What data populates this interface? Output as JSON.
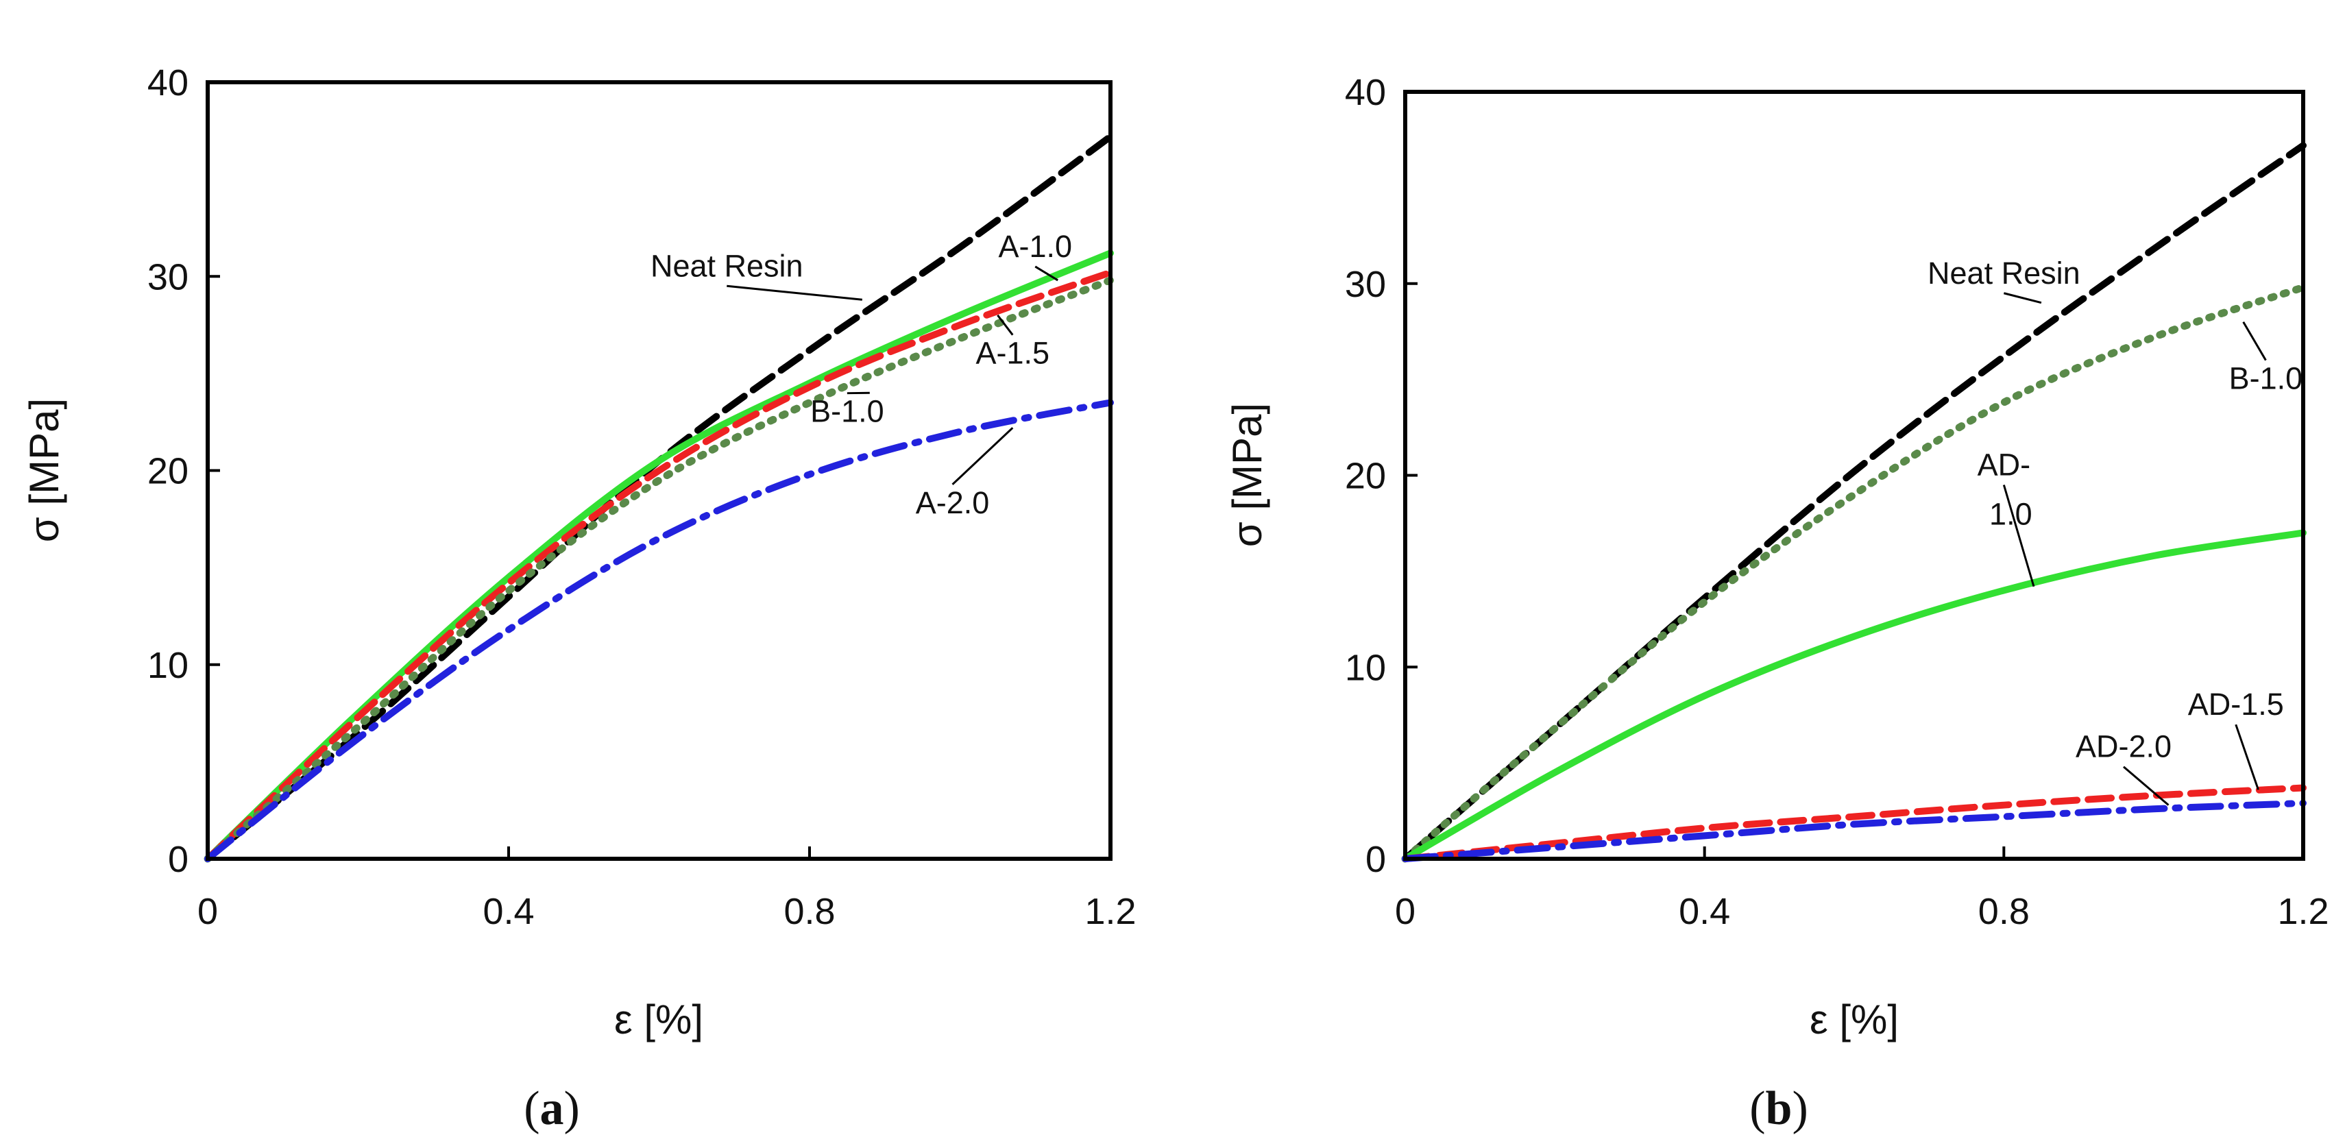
{
  "chart_data": [
    {
      "type": "line",
      "panel": "a",
      "caption": {
        "open": "(",
        "letter": "a",
        "close": ")"
      },
      "xlabel": "ε [%]",
      "ylabel": "σ [MPa]",
      "xlim": [
        0,
        1.2
      ],
      "ylim": [
        0,
        40
      ],
      "xticks": [
        "0",
        "0.4",
        "0.8",
        "1.2"
      ],
      "yticks": [
        "0",
        "10",
        "20",
        "30",
        "40"
      ],
      "grid": false,
      "series": [
        {
          "name": "Neat Resin",
          "color": "#000000",
          "style": "dashed",
          "x": [
            0,
            0.2,
            0.4,
            0.6,
            0.8,
            1.0,
            1.2
          ],
          "y": [
            0,
            6.5,
            13.5,
            20.5,
            26.2,
            31.5,
            37.2
          ],
          "label": {
            "text": "Neat Resin",
            "x": 0.69,
            "y": 30.0,
            "ax": 0.87,
            "ay": 28.8
          }
        },
        {
          "name": "A-1.0",
          "color": "#33e033",
          "style": "solid",
          "x": [
            0,
            0.2,
            0.4,
            0.6,
            0.8,
            1.0,
            1.2
          ],
          "y": [
            0,
            7.5,
            14.5,
            20.5,
            24.5,
            28.0,
            31.2
          ],
          "label": {
            "text": "A-1.0",
            "x": 1.1,
            "y": 31.0,
            "ax": 1.13,
            "ay": 29.8
          }
        },
        {
          "name": "A-1.5",
          "color": "#ee2222",
          "style": "dashed",
          "x": [
            0,
            0.2,
            0.4,
            0.6,
            0.8,
            1.0,
            1.2
          ],
          "y": [
            0,
            7.3,
            14.2,
            20.0,
            24.3,
            27.5,
            30.2
          ],
          "label": {
            "text": "A-1.5",
            "x": 1.07,
            "y": 25.5,
            "ax": 1.05,
            "ay": 28.0
          }
        },
        {
          "name": "B-1.0",
          "color": "#5a8a4a",
          "style": "dotted",
          "x": [
            0,
            0.2,
            0.4,
            0.6,
            0.8,
            1.0,
            1.2
          ],
          "y": [
            0,
            6.8,
            13.8,
            19.5,
            23.5,
            26.8,
            29.8
          ],
          "label": {
            "text": "B-1.0",
            "x": 0.85,
            "y": 22.5,
            "ax": 0.88,
            "ay": 24.0
          }
        },
        {
          "name": "A-2.0",
          "color": "#2222dd",
          "style": "dashdot",
          "x": [
            0,
            0.2,
            0.4,
            0.6,
            0.8,
            1.0,
            1.2
          ],
          "y": [
            0,
            6.2,
            11.8,
            16.5,
            19.8,
            22.0,
            23.5
          ],
          "label": {
            "text": "A-2.0",
            "x": 0.99,
            "y": 17.8,
            "ax": 1.07,
            "ay": 22.2
          }
        }
      ]
    },
    {
      "type": "line",
      "panel": "b",
      "caption": {
        "open": "(",
        "letter": "b",
        "close": ")"
      },
      "xlabel": "ε [%]",
      "ylabel": "σ [MPa]",
      "xlim": [
        0,
        1.2
      ],
      "ylim": [
        0,
        40
      ],
      "xticks": [
        "0",
        "0.4",
        "0.8",
        "1.2"
      ],
      "yticks": [
        "0",
        "10",
        "20",
        "30",
        "40"
      ],
      "grid": false,
      "series": [
        {
          "name": "Neat Resin",
          "color": "#000000",
          "style": "dashed",
          "x": [
            0,
            0.2,
            0.4,
            0.6,
            0.8,
            1.0,
            1.2
          ],
          "y": [
            0,
            6.8,
            13.6,
            20.2,
            26.2,
            31.8,
            37.2
          ],
          "label": {
            "text": "Neat Resin",
            "x": 0.8,
            "y": 30.0,
            "ax": 0.85,
            "ay": 29.0
          }
        },
        {
          "name": "B-1.0",
          "color": "#5a8a4a",
          "style": "dotted",
          "x": [
            0,
            0.2,
            0.4,
            0.6,
            0.8,
            1.0,
            1.2
          ],
          "y": [
            0,
            6.8,
            13.4,
            19.0,
            23.8,
            27.2,
            29.8
          ],
          "label": {
            "text": "B-1.0",
            "x": 1.15,
            "y": 24.5,
            "ax": 1.12,
            "ay": 28.0
          }
        },
        {
          "name": "AD-1.0",
          "color": "#33e033",
          "style": "solid",
          "x": [
            0,
            0.2,
            0.4,
            0.6,
            0.8,
            1.0,
            1.2
          ],
          "y": [
            0,
            4.5,
            8.5,
            11.6,
            14.0,
            15.8,
            17.0
          ],
          "label": {
            "text": "AD-",
            "text2": "1.0",
            "x": 0.8,
            "y": 20.0,
            "ax": 0.84,
            "ay": 14.2
          }
        },
        {
          "name": "AD-1.5",
          "color": "#ee2222",
          "style": "dashed",
          "x": [
            0,
            0.2,
            0.4,
            0.6,
            0.8,
            1.0,
            1.2
          ],
          "y": [
            0,
            0.8,
            1.6,
            2.2,
            2.8,
            3.3,
            3.7
          ],
          "label": {
            "text": "AD-1.5",
            "x": 1.11,
            "y": 7.5,
            "ax": 1.14,
            "ay": 3.6
          }
        },
        {
          "name": "AD-2.0",
          "color": "#2222dd",
          "style": "dashdot",
          "x": [
            0,
            0.2,
            0.4,
            0.6,
            0.8,
            1.0,
            1.2
          ],
          "y": [
            0,
            0.6,
            1.2,
            1.8,
            2.2,
            2.6,
            2.9
          ],
          "label": {
            "text": "AD-2.0",
            "x": 0.96,
            "y": 5.3,
            "ax": 1.02,
            "ay": 2.8
          }
        }
      ]
    }
  ]
}
